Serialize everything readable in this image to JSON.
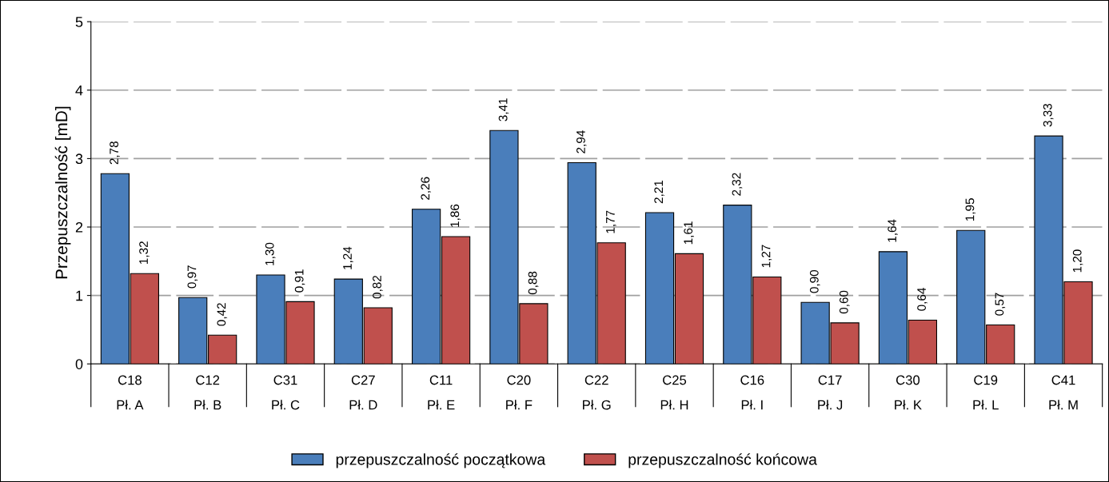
{
  "chart_data": {
    "type": "bar",
    "ylabel": "Przepuszczalność [mD]",
    "categories": [
      "C18\n\nPł. A",
      "C12\n\nPł. B",
      "C31\n\nPł. C",
      "C27\n\nPł. D",
      "C11\n\nPł. E",
      "C20\n\nPł. F",
      "C22\n\nPł. G",
      "C25\n\nPł. H",
      "C16\n\nPł. I",
      "C17\n\nPł. J",
      "C30\n\nPł. K",
      "C19\n\nPł. L",
      "C41\n\nPł. M"
    ],
    "series": [
      {
        "name": "przepuszczalność początkowa",
        "color": "#4a7ebb",
        "values": [
          2.78,
          0.97,
          1.3,
          1.24,
          2.26,
          3.41,
          2.94,
          2.21,
          2.32,
          0.9,
          1.64,
          1.95,
          3.33
        ],
        "value_labels": [
          "2,78",
          "0,97",
          "1,30",
          "1,24",
          "2,26",
          "3,41",
          "2,94",
          "2,21",
          "2,32",
          "0,90",
          "1,64",
          "1,95",
          "3,33"
        ]
      },
      {
        "name": "przepuszczalność końcowa",
        "color": "#c0504d",
        "values": [
          1.32,
          0.42,
          0.91,
          0.82,
          1.86,
          0.88,
          1.77,
          1.61,
          1.27,
          0.6,
          0.64,
          0.57,
          1.2
        ],
        "value_labels": [
          "1,32",
          "0,42",
          "0,91",
          "0,82",
          "1,86",
          "0,88",
          "1,77",
          "1,61",
          "1,27",
          "0,60",
          "0,64",
          "0,57",
          "1,20"
        ]
      }
    ],
    "ylim": [
      0,
      5
    ],
    "yticks": [
      0,
      1,
      2,
      3,
      4,
      5
    ],
    "grid": "y",
    "legend": "bottom"
  }
}
